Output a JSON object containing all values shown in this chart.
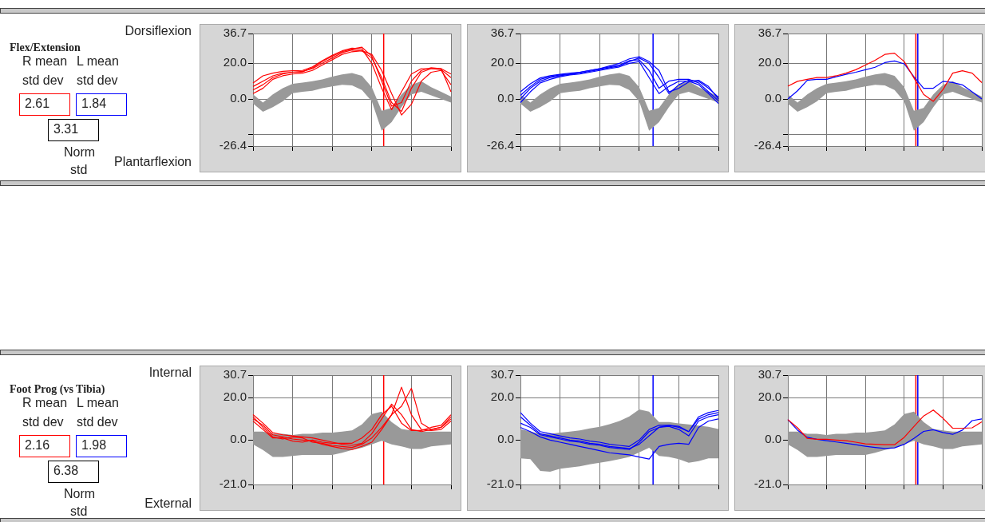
{
  "chart_data": [
    {
      "type": "other",
      "title": "Flex/Extension",
      "annotations": [
        "Dorsiflexion",
        "Plantarflexion",
        "R mean",
        "L mean",
        "std dev",
        "std dev",
        "2.61",
        "1.84",
        "3.31",
        "Norm",
        "std"
      ]
    },
    {
      "type": "line",
      "categories": [
        null,
        null,
        null,
        null,
        null,
        null,
        null,
        null,
        null,
        null,
        null,
        null,
        null,
        null,
        null,
        null,
        null,
        null,
        null,
        null,
        null
      ],
      "series": [
        {
          "color": "#999999",
          "values": [
            null,
            null,
            null,
            null,
            null,
            null,
            null,
            null,
            null,
            null,
            null,
            null,
            null,
            null,
            null,
            null,
            null,
            null,
            null,
            null,
            null
          ],
          "lower": [
            -2.6,
            -7.2,
            -4.6,
            -1.3,
            3.3,
            4,
            4.6,
            6,
            7,
            8,
            7.6,
            5,
            -1.3,
            -17.8,
            -13,
            -4.6,
            2.6,
            4,
            2,
            0,
            -2
          ],
          "upper": [
            2.6,
            -2,
            2.6,
            6,
            8.5,
            9.2,
            10,
            11,
            12.5,
            13.8,
            14.5,
            13,
            6.6,
            -6.6,
            -5,
            2.6,
            8,
            10,
            6.6,
            4,
            1.3
          ]
        },
        {
          "color": "#ff0000",
          "values": [
            9,
            13,
            14.5,
            15.5,
            15.8,
            16,
            18,
            21.5,
            24.5,
            27,
            28.5,
            28,
            20,
            6,
            -6,
            4,
            14,
            17,
            17,
            16.5,
            12
          ]
        },
        {
          "color": "#ff0000",
          "values": [
            5,
            8,
            12,
            14,
            15,
            15.5,
            17,
            20,
            23,
            26,
            27.5,
            27,
            23,
            12,
            -2,
            -7,
            6,
            15,
            17,
            17,
            14
          ]
        },
        {
          "color": "#ff0000",
          "values": [
            3,
            6,
            11,
            13,
            14,
            14.5,
            16,
            19,
            22,
            25,
            26.5,
            27,
            25,
            16,
            3,
            -9,
            -3,
            10,
            15,
            16,
            8
          ]
        },
        {
          "color": "#ff0000",
          "values": [
            7,
            10,
            13,
            14.5,
            15,
            15.2,
            17.5,
            21,
            24,
            26.5,
            28,
            29,
            24,
            10,
            -4,
            -2,
            10,
            16,
            17.5,
            17,
            4
          ]
        }
      ],
      "ylim": [
        -26.4,
        36.7
      ],
      "yticks": [
        -26.4,
        {
          "value": -20,
          "label": null
        },
        {
          "value": 0,
          "label": "0.0"
        },
        {
          "value": 20,
          "label": "20.0"
        },
        36.7
      ],
      "grid": true,
      "tick_labels": "y"
    },
    {
      "type": "line",
      "categories": [
        null,
        null,
        null,
        null,
        null,
        null,
        null,
        null,
        null,
        null,
        null,
        null,
        null,
        null,
        null,
        null,
        null,
        null,
        null,
        null,
        null
      ],
      "series": [
        {
          "color": "#999999",
          "values": [
            null,
            null,
            null,
            null,
            null,
            null,
            null,
            null,
            null,
            null,
            null,
            null,
            null,
            null,
            null,
            null,
            null,
            null,
            null,
            null,
            null
          ],
          "lower": [
            -2.6,
            -7.2,
            -4.6,
            -1.3,
            3.3,
            4,
            4.6,
            6,
            7,
            8,
            7.6,
            5,
            -1.3,
            -17.8,
            -13,
            -4.6,
            2.6,
            4,
            2,
            0,
            -2
          ],
          "upper": [
            2.6,
            -2,
            2.6,
            6,
            8.5,
            9.2,
            10,
            11,
            12.5,
            13.8,
            14.5,
            13,
            6.6,
            -6.6,
            -5,
            2.6,
            8,
            10,
            6.6,
            4,
            1.3
          ]
        },
        {
          "color": "#0000ff",
          "values": [
            4,
            8.5,
            11.8,
            13,
            13.8,
            14.5,
            15,
            16,
            17,
            18,
            19,
            21.5,
            22,
            16,
            6,
            10,
            11,
            11,
            9,
            4,
            -1
          ]
        },
        {
          "color": "#0000ff",
          "values": [
            0,
            6,
            10,
            12,
            13,
            13.8,
            14.5,
            15.5,
            16.5,
            17.5,
            18.5,
            21,
            23,
            20,
            12,
            3,
            8,
            10.5,
            10,
            6,
            1
          ]
        },
        {
          "color": "#0000ff",
          "values": [
            -2,
            4,
            9,
            11,
            12.5,
            13.5,
            14,
            15,
            16,
            17,
            18,
            20,
            21,
            12,
            3,
            7,
            10,
            10,
            8,
            3,
            -2.5
          ]
        },
        {
          "color": "#0000ff",
          "values": [
            2,
            7,
            11,
            12.5,
            13.5,
            14,
            15,
            16,
            17,
            18.5,
            20,
            22.5,
            23.7,
            21,
            16,
            4,
            6,
            9.5,
            10.5,
            7,
            0
          ]
        }
      ],
      "ylim": [
        -26.4,
        36.7
      ],
      "yticks": [
        -26.4,
        {
          "value": -20,
          "label": null
        },
        {
          "value": 0,
          "label": "0.0"
        },
        {
          "value": 20,
          "label": "20.0"
        },
        36.7
      ],
      "grid": true,
      "tick_labels": "y"
    },
    {
      "type": "line",
      "categories": [
        null,
        null,
        null,
        null,
        null,
        null,
        null,
        null,
        null,
        null,
        null,
        null,
        null,
        null,
        null,
        null,
        null,
        null,
        null,
        null,
        null
      ],
      "series": [
        {
          "color": "#999999",
          "values": [
            null,
            null,
            null,
            null,
            null,
            null,
            null,
            null,
            null,
            null,
            null,
            null,
            null,
            null,
            null,
            null,
            null,
            null,
            null,
            null,
            null
          ],
          "lower": [
            -2.6,
            -7.2,
            -4.6,
            -1.3,
            3.3,
            4,
            4.6,
            6,
            7,
            8,
            7.6,
            5,
            -1.3,
            -17.8,
            -13,
            -4.6,
            2.6,
            4,
            2,
            0,
            -2
          ],
          "upper": [
            2.6,
            -2,
            2.6,
            6,
            8.5,
            9.2,
            10,
            11,
            12.5,
            13.8,
            14.5,
            13,
            6.6,
            -6.6,
            -5,
            2.6,
            8,
            10,
            6.6,
            4,
            1.3
          ]
        },
        {
          "color": "#0000ff",
          "values": [
            0,
            4.6,
            10.5,
            11,
            11,
            12.5,
            13.8,
            15,
            16.4,
            17.8,
            20.4,
            21.3,
            19.7,
            12.5,
            6,
            6,
            9.9,
            9.2,
            7.9,
            4,
            0
          ]
        },
        {
          "color": "#ff0000",
          "values": [
            7.2,
            9.9,
            11,
            12,
            12,
            13,
            14.5,
            16.4,
            19,
            21.7,
            25,
            25.7,
            21,
            11.8,
            2.6,
            -1.3,
            5.3,
            14.5,
            15.8,
            14.5,
            9.2
          ]
        }
      ],
      "ylim": [
        -26.4,
        36.7
      ],
      "yticks": [
        -26.4,
        {
          "value": -20,
          "label": null
        },
        {
          "value": 0,
          "label": "0.0"
        },
        {
          "value": 20,
          "label": "20.0"
        },
        36.7
      ],
      "grid": true,
      "tick_labels": "y"
    },
    {
      "type": "other",
      "title": "Foot Prog (vs Tibia)",
      "annotations": [
        "Internal",
        "External",
        "R mean",
        "L mean",
        "std dev",
        "std dev",
        "2.16",
        "1.98",
        "6.38",
        "Norm",
        "std"
      ]
    },
    {
      "type": "line",
      "categories": [
        null,
        null,
        null,
        null,
        null,
        null,
        null,
        null,
        null,
        null,
        null,
        null,
        null,
        null,
        null,
        null,
        null,
        null,
        null,
        null,
        null
      ],
      "series": [
        {
          "color": "#999999",
          "values": [
            null,
            null,
            null,
            null,
            null,
            null,
            null,
            null,
            null,
            null,
            null,
            null,
            null,
            null,
            null,
            null,
            null,
            null,
            null,
            null,
            null
          ],
          "lower": [
            -2,
            -4.7,
            -8,
            -8,
            -7.5,
            -7,
            -7,
            -7,
            -7,
            -6,
            -4.7,
            -3.6,
            -2,
            -0.3,
            -2,
            -3,
            -4.2,
            -4.2,
            -3,
            -2.5,
            -2
          ],
          "upper": [
            4,
            4,
            3,
            3,
            2.4,
            3,
            3,
            3.5,
            3.5,
            4,
            4.6,
            7.4,
            12.3,
            13.4,
            8.5,
            5.2,
            4.6,
            4,
            4,
            4,
            4
          ]
        },
        {
          "color": "#ff0000",
          "values": [
            12,
            8,
            3.5,
            2.5,
            2,
            1.5,
            1,
            0,
            -1,
            -2,
            -2.5,
            -1.5,
            3,
            10,
            17,
            12,
            5,
            4,
            5,
            6,
            10
          ]
        },
        {
          "color": "#ff0000",
          "values": [
            10,
            7,
            2.5,
            1.5,
            0.5,
            0,
            -0.5,
            -2,
            -3,
            -4,
            -4.5,
            -3,
            -1,
            5,
            12,
            25,
            12,
            5,
            4.5,
            5,
            9
          ]
        },
        {
          "color": "#ff0000",
          "values": [
            11,
            6,
            1.5,
            0.5,
            1.5,
            1,
            -1,
            -1.5,
            -2.5,
            -3,
            -3.5,
            -2,
            1,
            6,
            12,
            16,
            24.5,
            8,
            5,
            6,
            11
          ]
        },
        {
          "color": "#ff0000",
          "values": [
            9,
            5,
            1,
            1,
            -0.5,
            -1,
            0,
            -1,
            -1.5,
            -1.5,
            -1.5,
            1,
            5,
            12,
            16,
            8,
            4.5,
            4.5,
            6,
            7,
            12
          ]
        }
      ],
      "ylim": [
        -21,
        30.7
      ],
      "yticks": [
        {
          "value": -21,
          "label": "-21.0"
        },
        {
          "value": 0,
          "label": "0.0"
        },
        {
          "value": 20,
          "label": "20.0"
        },
        30.7
      ],
      "grid": true,
      "tick_labels": "y"
    },
    {
      "type": "line",
      "categories": [
        null,
        null,
        null,
        null,
        null,
        null,
        null,
        null,
        null,
        null,
        null,
        null,
        null,
        null,
        null,
        null,
        null,
        null,
        null,
        null,
        null
      ],
      "series": [
        {
          "color": "#999999",
          "values": [
            null,
            null,
            null,
            null,
            null,
            null,
            null,
            null,
            null,
            null,
            null,
            null,
            null,
            null,
            null,
            null,
            null,
            null,
            null,
            null,
            null
          ],
          "lower": [
            -8.6,
            -9,
            -14.6,
            -15,
            -13.5,
            -13,
            -12.4,
            -11.5,
            -10.7,
            -10,
            -9,
            -8,
            -5.8,
            -3.6,
            -7.5,
            -8,
            -9,
            -10.7,
            -10,
            -8.6,
            -8.6
          ],
          "upper": [
            5.2,
            4,
            3,
            3,
            3.5,
            4,
            4.6,
            5.5,
            6.3,
            7.5,
            9,
            11.2,
            14.5,
            13.4,
            8.5,
            8.5,
            7.9,
            7.4,
            6.8,
            6.3,
            5.2
          ]
        },
        {
          "color": "#0000ff",
          "values": [
            13,
            8,
            4,
            3,
            2,
            1,
            0.5,
            -0.5,
            -1,
            -2,
            -2.5,
            -3,
            0,
            5,
            7,
            7,
            6,
            4,
            11,
            13,
            14
          ]
        },
        {
          "color": "#0000ff",
          "values": [
            8,
            6,
            2.5,
            1.5,
            0.5,
            -0.5,
            -1,
            -2,
            -2.5,
            -3.5,
            -4,
            -4.5,
            -1,
            4,
            6,
            6.5,
            5,
            2,
            9,
            11,
            12
          ]
        },
        {
          "color": "#0000ff",
          "values": [
            6,
            4,
            1.5,
            0,
            -1,
            -2,
            -3,
            -4,
            -5,
            -6,
            -6.5,
            -7,
            -8,
            -9,
            -3,
            -2,
            -1.5,
            -2,
            6,
            9,
            10
          ]
        },
        {
          "color": "#0000ff",
          "values": [
            11,
            7,
            3,
            2,
            1,
            0,
            -0.5,
            -1.5,
            -2,
            -3,
            -3.5,
            -4,
            -2,
            2,
            6,
            7,
            6.5,
            4,
            10,
            12,
            13
          ]
        }
      ],
      "ylim": [
        -21,
        30.7
      ],
      "yticks": [
        {
          "value": -21,
          "label": "-21.0"
        },
        {
          "value": 0,
          "label": "0.0"
        },
        {
          "value": 20,
          "label": "20.0"
        },
        30.7
      ],
      "grid": true,
      "tick_labels": "y"
    },
    {
      "type": "line",
      "categories": [
        null,
        null,
        null,
        null,
        null,
        null,
        null,
        null,
        null,
        null,
        null,
        null,
        null,
        null,
        null,
        null,
        null,
        null,
        null,
        null,
        null
      ],
      "series": [
        {
          "color": "#999999",
          "values": [
            null,
            null,
            null,
            null,
            null,
            null,
            null,
            null,
            null,
            null,
            null,
            null,
            null,
            null,
            null,
            null,
            null,
            null,
            null,
            null,
            null
          ],
          "lower": [
            -2,
            -4.7,
            -8,
            -8,
            -7.5,
            -7,
            -7,
            -7,
            -7,
            -6,
            -4.7,
            -3.6,
            -2,
            -0.3,
            -2,
            -3,
            -4.2,
            -4.2,
            -3,
            -2.5,
            -2
          ],
          "upper": [
            4,
            4,
            3,
            3,
            2.4,
            3,
            3,
            3.5,
            3.5,
            4,
            4.6,
            7.4,
            12.3,
            13.4,
            8.5,
            5.2,
            4.6,
            4,
            4,
            4,
            4
          ]
        },
        {
          "color": "#0000ff",
          "values": [
            9.7,
            4.7,
            1.3,
            0.4,
            -0.3,
            -0.9,
            -1.5,
            -2.2,
            -2.9,
            -3.5,
            -4,
            -3.7,
            -2,
            0.8,
            4.1,
            4.9,
            3.6,
            2.7,
            4.7,
            9.2,
            10
          ]
        },
        {
          "color": "#ff0000",
          "values": [
            9.7,
            5.8,
            0.8,
            0.4,
            0.4,
            0,
            -0.3,
            -1,
            -1.8,
            -2,
            -2.2,
            -2.2,
            1.3,
            6.4,
            11.4,
            14.2,
            10.3,
            5.6,
            5.6,
            5.8,
            8.6
          ]
        }
      ],
      "ylim": [
        -21,
        30.7
      ],
      "yticks": [
        {
          "value": -21,
          "label": "-21.0"
        },
        {
          "value": 0,
          "label": "0.0"
        },
        {
          "value": 20,
          "label": "20.0"
        },
        30.7
      ],
      "grid": true,
      "tick_labels": "y"
    }
  ]
}
